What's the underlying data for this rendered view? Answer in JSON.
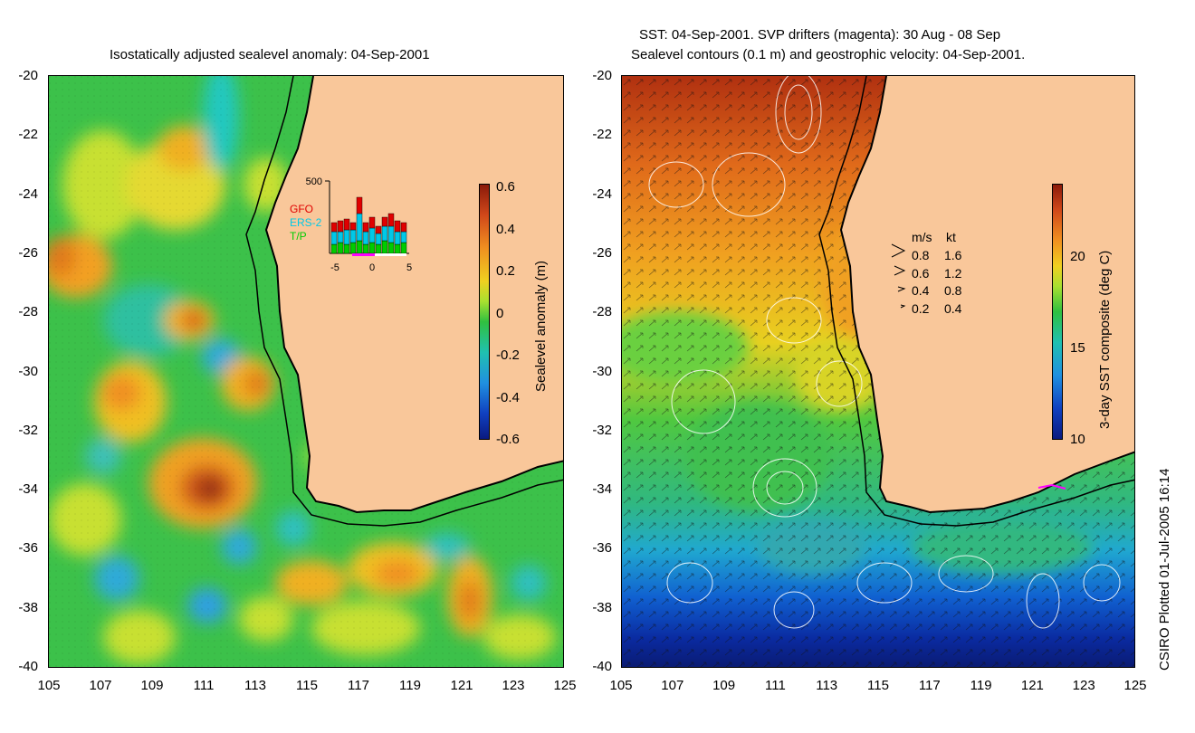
{
  "left_panel": {
    "title": "Isostatically adjusted sealevel anomaly: 04-Sep-2001",
    "y_ticks": [
      "-20",
      "-22",
      "-24",
      "-26",
      "-28",
      "-30",
      "-32",
      "-34",
      "-36",
      "-38",
      "-40"
    ],
    "x_ticks": [
      "105",
      "107",
      "109",
      "111",
      "113",
      "115",
      "117",
      "119",
      "121",
      "123",
      "125"
    ],
    "colorbar": {
      "label": "Sealevel anomaly (m)",
      "ticks": [
        "0.6",
        "0.4",
        "0.2",
        "0",
        "-0.2",
        "-0.4",
        "-0.6"
      ],
      "range": [
        -0.6,
        0.6
      ]
    },
    "inset": {
      "ymax_label": "500",
      "x_ticks": [
        "-5",
        "0",
        "5"
      ],
      "satellites": [
        {
          "name": "GFO",
          "color": "#e00000"
        },
        {
          "name": "ERS-2",
          "color": "#00c8e8"
        },
        {
          "name": "T/P",
          "color": "#00cc00"
        }
      ]
    }
  },
  "right_panel": {
    "title_line1": "SST: 04-Sep-2001. SVP drifters (magenta): 30 Aug - 08 Sep",
    "title_line2": "Sealevel contours (0.1 m) and geostrophic velocity: 04-Sep-2001.",
    "y_ticks": [
      "-20",
      "-22",
      "-24",
      "-26",
      "-28",
      "-30",
      "-32",
      "-34",
      "-36",
      "-38",
      "-40"
    ],
    "x_ticks": [
      "105",
      "107",
      "109",
      "111",
      "113",
      "115",
      "117",
      "119",
      "121",
      "123",
      "125"
    ],
    "colorbar": {
      "label": "3-day SST composite (deg C)",
      "ticks": [
        "20",
        "15",
        "10"
      ],
      "range": [
        10,
        24
      ]
    },
    "velocity_legend": {
      "header_ms": "m/s",
      "header_kt": "kt",
      "rows": [
        {
          "ms": "0.8",
          "kt": "1.6"
        },
        {
          "ms": "0.6",
          "kt": "1.2"
        },
        {
          "ms": "0.4",
          "kt": "0.8"
        },
        {
          "ms": "0.2",
          "kt": "0.4"
        }
      ]
    }
  },
  "credit": "CSIRO Plotted 01-Jul-2005 16:14",
  "colors": {
    "land": "#f9c79a",
    "coast": "#000000"
  }
}
